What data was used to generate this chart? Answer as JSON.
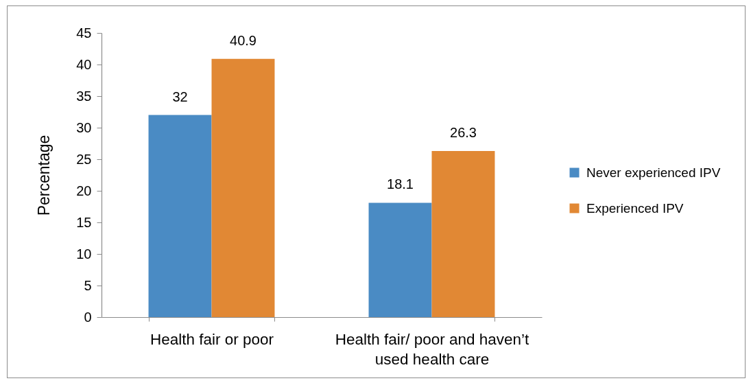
{
  "chart_data": {
    "type": "bar",
    "ylabel": "Percentage",
    "categories": [
      "Health fair or poor",
      "Health fair/ poor and haven’t used health care"
    ],
    "series": [
      {
        "name": "Never experienced IPV",
        "color": "#4a8bc4",
        "values": [
          32,
          18.1
        ]
      },
      {
        "name": "Experienced IPV",
        "color": "#e18834",
        "values": [
          40.9,
          26.3
        ]
      }
    ],
    "ylim": [
      0,
      45
    ],
    "yticks": [
      0,
      5,
      10,
      15,
      20,
      25,
      30,
      35,
      40,
      45
    ],
    "data_labels": true,
    "legend": "right"
  }
}
